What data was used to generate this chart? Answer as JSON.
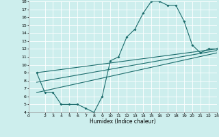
{
  "xlabel": "Humidex (Indice chaleur)",
  "xlim": [
    0,
    23
  ],
  "ylim": [
    4,
    18
  ],
  "xticks": [
    0,
    2,
    3,
    4,
    5,
    6,
    7,
    8,
    9,
    10,
    11,
    12,
    13,
    14,
    15,
    16,
    17,
    18,
    19,
    20,
    21,
    22,
    23
  ],
  "yticks": [
    4,
    5,
    6,
    7,
    8,
    9,
    10,
    11,
    12,
    13,
    14,
    15,
    16,
    17,
    18
  ],
  "bg_color": "#cdeeed",
  "line_color": "#1a6b6b",
  "grid_color": "#ffffff",
  "line1_x": [
    1,
    2,
    3,
    4,
    5,
    6,
    7,
    8,
    9,
    10,
    11,
    12,
    13,
    14,
    15,
    16,
    17,
    18,
    19,
    20,
    21,
    22,
    23
  ],
  "line1_y": [
    9.0,
    6.5,
    6.5,
    5.0,
    5.0,
    5.0,
    4.5,
    4.0,
    6.0,
    10.5,
    11.0,
    13.5,
    14.5,
    16.5,
    18.0,
    18.0,
    17.5,
    17.5,
    15.5,
    12.5,
    11.5,
    12.0,
    12.0
  ],
  "line2_x": [
    1,
    23
  ],
  "line2_y": [
    9.0,
    12.0
  ],
  "line3_x": [
    1,
    23
  ],
  "line3_y": [
    7.8,
    11.8
  ],
  "line4_x": [
    1,
    23
  ],
  "line4_y": [
    6.5,
    11.5
  ]
}
